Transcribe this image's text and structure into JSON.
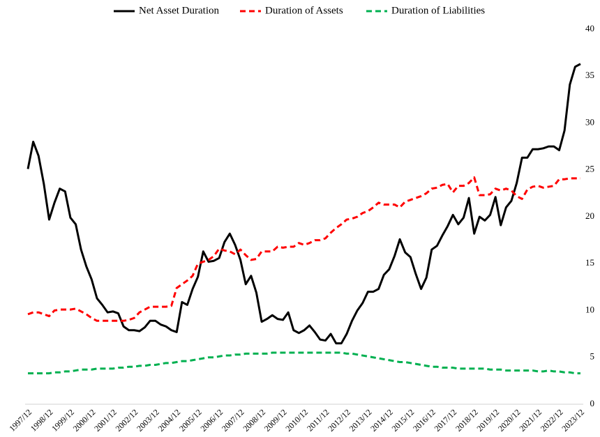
{
  "chart_data": {
    "type": "line",
    "categories": [
      "1997/12",
      null,
      null,
      null,
      "1998/12",
      null,
      null,
      null,
      "1999/12",
      null,
      null,
      null,
      "2000/12",
      null,
      null,
      null,
      "2001/12",
      null,
      null,
      null,
      "2002/12",
      null,
      null,
      null,
      "2003/12",
      null,
      null,
      null,
      "2004/12",
      null,
      null,
      null,
      "2005/12",
      null,
      null,
      null,
      "2006/12",
      null,
      null,
      null,
      "2007/12",
      null,
      null,
      null,
      "2008/12",
      null,
      null,
      null,
      "2009/12",
      null,
      null,
      null,
      "2010/12",
      null,
      null,
      null,
      "2011/12",
      null,
      null,
      null,
      "2012/12",
      null,
      null,
      null,
      "2013/12",
      null,
      null,
      null,
      "2014/12",
      null,
      null,
      null,
      "2015/12",
      null,
      null,
      null,
      "2016/12",
      null,
      null,
      null,
      "2017/12",
      null,
      null,
      null,
      "2018/12",
      null,
      null,
      null,
      "2019/12",
      null,
      null,
      null,
      "2020/12",
      null,
      null,
      null,
      "2021/12",
      null,
      null,
      null,
      "2022/12",
      null,
      null,
      null,
      "2023/12"
    ],
    "series": [
      {
        "name": "Net Asset Duration",
        "color": "#000000",
        "dash": false,
        "values": [
          25.1,
          28.0,
          26.5,
          23.5,
          19.7,
          21.5,
          23.0,
          22.7,
          19.9,
          19.2,
          16.5,
          14.7,
          13.3,
          11.3,
          10.6,
          9.8,
          9.9,
          9.7,
          8.3,
          7.9,
          7.9,
          7.8,
          8.2,
          8.9,
          8.9,
          8.5,
          8.3,
          7.9,
          7.7,
          10.9,
          10.6,
          12.3,
          13.6,
          16.3,
          15.2,
          15.3,
          15.6,
          17.3,
          18.2,
          17.0,
          15.4,
          12.8,
          13.7,
          11.9,
          8.8,
          9.1,
          9.5,
          9.1,
          9.0,
          9.8,
          7.9,
          7.6,
          7.9,
          8.4,
          7.7,
          6.9,
          6.8,
          7.5,
          6.5,
          6.5,
          7.5,
          8.9,
          10.0,
          10.8,
          12.0,
          12.0,
          12.3,
          13.8,
          14.4,
          15.8,
          17.6,
          16.2,
          15.7,
          13.9,
          12.3,
          13.5,
          16.5,
          16.9,
          18.0,
          19.0,
          20.2,
          19.2,
          19.9,
          22.0,
          18.2,
          20.0,
          19.6,
          20.2,
          22.1,
          19.1,
          21.0,
          21.7,
          23.6,
          26.3,
          26.3,
          27.2,
          27.2,
          27.3,
          27.5,
          27.5,
          27.1,
          29.2,
          34.1,
          36.0,
          36.3
        ]
      },
      {
        "name": "Duration of Assets",
        "color": "#ff0000",
        "dash": true,
        "values": [
          9.6,
          9.8,
          9.8,
          9.6,
          9.4,
          10.0,
          10.1,
          10.1,
          10.1,
          10.2,
          9.9,
          9.6,
          9.2,
          8.9,
          8.9,
          8.9,
          8.9,
          8.9,
          8.9,
          9.0,
          9.2,
          9.8,
          10.1,
          10.4,
          10.4,
          10.4,
          10.4,
          10.5,
          12.4,
          12.8,
          13.2,
          13.7,
          15.0,
          15.2,
          15.4,
          15.8,
          16.6,
          16.4,
          16.3,
          16.0,
          16.5,
          15.9,
          15.4,
          15.5,
          16.3,
          16.3,
          16.3,
          16.8,
          16.7,
          16.8,
          16.8,
          17.2,
          17.0,
          17.2,
          17.5,
          17.5,
          17.7,
          18.3,
          18.8,
          19.2,
          19.7,
          19.8,
          20.0,
          20.4,
          20.6,
          21.0,
          21.5,
          21.3,
          21.3,
          21.3,
          21.0,
          21.6,
          21.8,
          22.0,
          22.2,
          22.5,
          23.0,
          23.1,
          23.4,
          23.5,
          22.6,
          23.3,
          23.3,
          23.6,
          24.2,
          22.3,
          22.3,
          22.4,
          23.0,
          22.8,
          23.0,
          22.8,
          22.2,
          21.9,
          22.9,
          23.2,
          23.3,
          23.1,
          23.2,
          23.3,
          24.0,
          24.0,
          24.1,
          24.1,
          24.1
        ]
      },
      {
        "name": "Duration of Liabilities",
        "color": "#00b050",
        "dash": true,
        "values": [
          3.3,
          3.3,
          3.3,
          3.3,
          3.3,
          3.4,
          3.4,
          3.5,
          3.5,
          3.6,
          3.7,
          3.7,
          3.7,
          3.8,
          3.8,
          3.8,
          3.8,
          3.9,
          3.9,
          4.0,
          4.0,
          4.1,
          4.1,
          4.2,
          4.2,
          4.3,
          4.4,
          4.4,
          4.5,
          4.6,
          4.6,
          4.7,
          4.8,
          4.9,
          5.0,
          5.0,
          5.1,
          5.2,
          5.2,
          5.3,
          5.3,
          5.4,
          5.4,
          5.4,
          5.4,
          5.4,
          5.5,
          5.5,
          5.5,
          5.5,
          5.5,
          5.5,
          5.5,
          5.5,
          5.5,
          5.5,
          5.5,
          5.5,
          5.5,
          5.5,
          5.4,
          5.4,
          5.3,
          5.2,
          5.1,
          5.0,
          4.9,
          4.8,
          4.7,
          4.6,
          4.5,
          4.5,
          4.4,
          4.3,
          4.2,
          4.1,
          4.0,
          4.0,
          3.9,
          3.9,
          3.9,
          3.8,
          3.8,
          3.8,
          3.8,
          3.8,
          3.8,
          3.7,
          3.7,
          3.7,
          3.6,
          3.6,
          3.6,
          3.6,
          3.6,
          3.6,
          3.5,
          3.5,
          3.6,
          3.5,
          3.5,
          3.4,
          3.4,
          3.3,
          3.3
        ]
      }
    ],
    "ylim": [
      0,
      40
    ],
    "yticks": [
      0,
      5,
      10,
      15,
      20,
      25,
      30,
      35,
      40
    ],
    "grid": false,
    "legend": "top"
  }
}
